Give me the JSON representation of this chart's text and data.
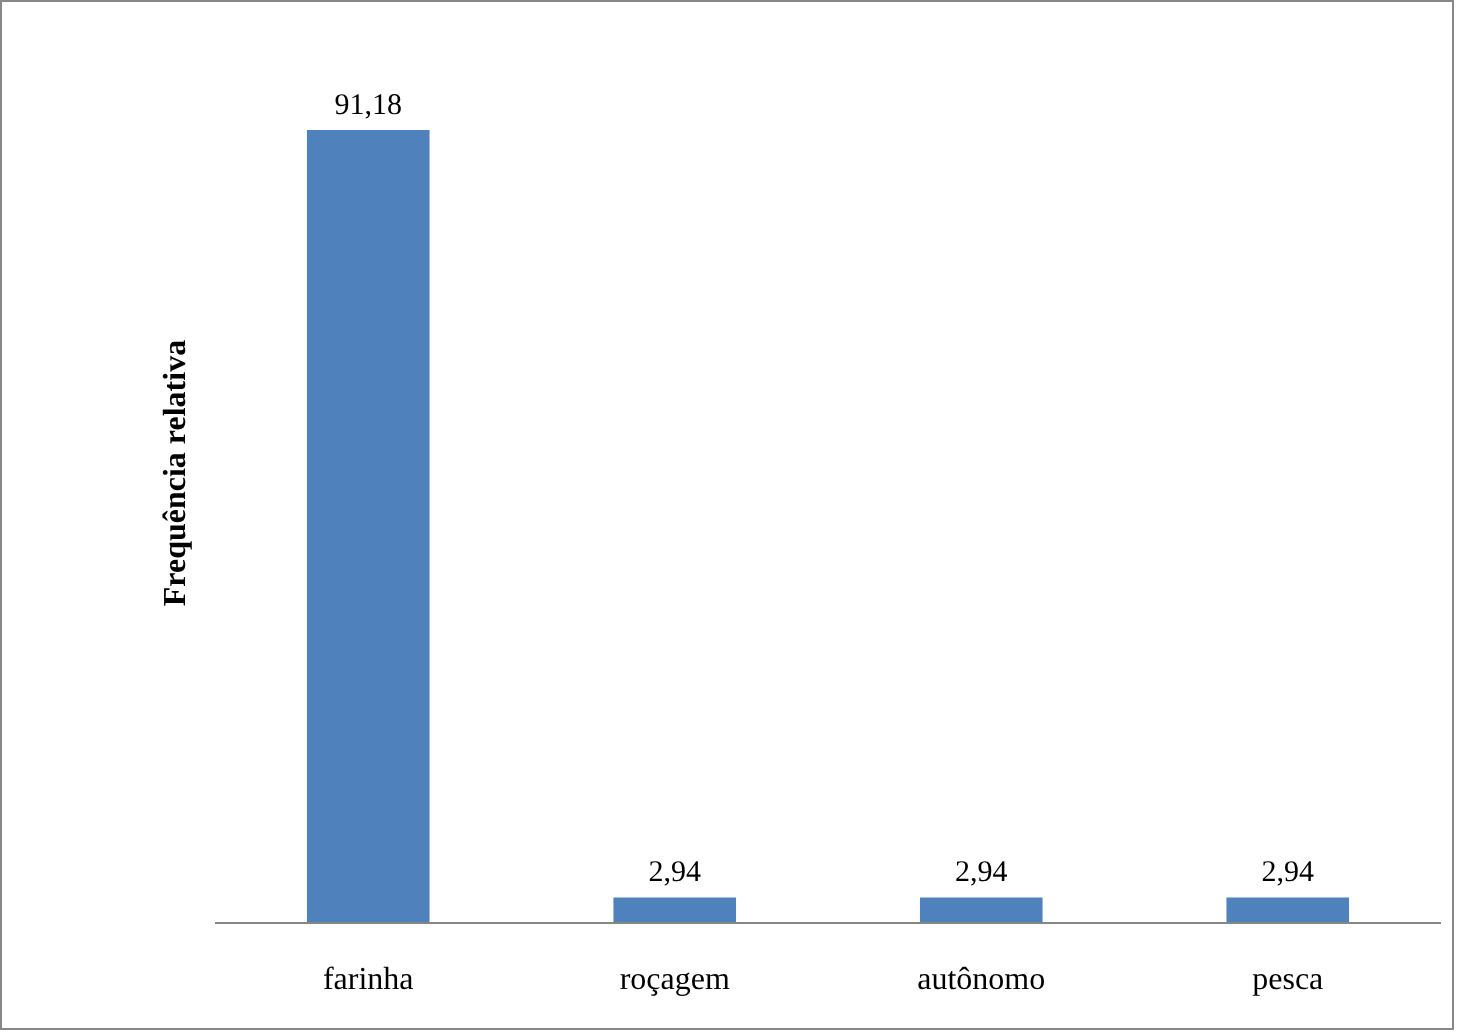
{
  "chart_data": {
    "type": "bar",
    "ylabel": "Frequência relativa",
    "categories": [
      "farinha",
      "roçagem",
      "autônomo",
      "pesca"
    ],
    "values": [
      91.18,
      2.94,
      2.94,
      2.94
    ],
    "value_labels": [
      "91,18",
      "2,94",
      "2,94",
      "2,94"
    ],
    "color": "#4f81bd"
  }
}
